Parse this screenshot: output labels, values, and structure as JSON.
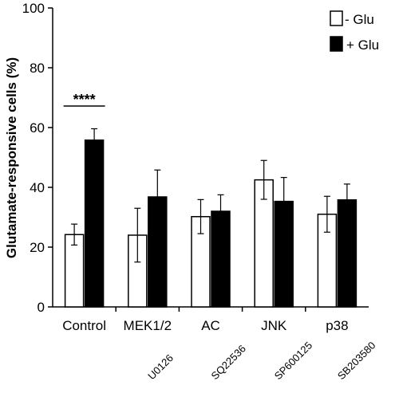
{
  "chart_data": {
    "type": "bar",
    "ylabel": "Glutamate-responsive cells (%)",
    "xlabel": "",
    "ylim": [
      0,
      100
    ],
    "yticks": [
      0,
      20,
      40,
      60,
      80,
      100
    ],
    "categories": [
      "Control",
      "MEK1/2",
      "AC",
      "JNK",
      "p38"
    ],
    "inhibitors": [
      "",
      "U0126",
      "SQ22536",
      "SP600125",
      "SB203580"
    ],
    "series": [
      {
        "name": "- Glu",
        "color": "#ffffff",
        "values": [
          24.2,
          24.0,
          30.2,
          42.5,
          31.0
        ],
        "errors": [
          3.5,
          9.0,
          5.7,
          6.5,
          6.0
        ]
      },
      {
        "name": "+ Glu",
        "color": "#000000",
        "values": [
          55.8,
          36.8,
          32.0,
          35.3,
          35.8
        ],
        "errors": [
          3.8,
          9.0,
          5.5,
          8.0,
          5.3
        ]
      }
    ],
    "annotations": [
      {
        "text": "****",
        "category": "Control"
      }
    ],
    "legend_position": "top-right"
  }
}
